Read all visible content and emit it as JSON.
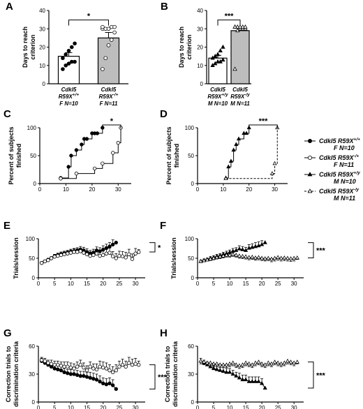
{
  "legend": [
    {
      "line1": "Cdkl5 R59X",
      "sup": "+/+",
      "line2": "F N=10",
      "marker": "filled-circle",
      "dash": false
    },
    {
      "line1": "Cdkl5 R59X",
      "sup": "-/+",
      "line2": "F N=11",
      "marker": "open-circle",
      "dash": false
    },
    {
      "line1": "Cdkl5 R59X",
      "sup": "+/y",
      "line2": "M N=10",
      "marker": "filled-triangle",
      "dash": false
    },
    {
      "line1": "Cdkl5 R59X",
      "sup": "-/y",
      "line2": "M N=11",
      "marker": "open-triangle",
      "dash": true
    }
  ],
  "chart_data": [
    {
      "id": "A",
      "type": "bar",
      "ylabel": [
        "Days to reach",
        "criterion"
      ],
      "ylim": [
        0,
        40
      ],
      "yticks": [
        0,
        10,
        20,
        30,
        40
      ],
      "categories": [
        {
          "l1": "Cdkl5",
          "l2": "R59X",
          "sup": "+/+",
          "l3": "F N=10"
        },
        {
          "l1": "Cdkl5",
          "l2": "R59X",
          "sup": "-/+",
          "l3": "F N=11"
        }
      ],
      "values": [
        15,
        25
      ],
      "sem": [
        2,
        3
      ],
      "fills": [
        "#ffffff",
        "#bdbdbd"
      ],
      "points": [
        [
          8,
          10,
          11,
          12,
          12,
          14,
          16,
          18,
          20,
          22
        ],
        [
          8,
          14,
          21,
          24,
          28,
          30,
          30,
          30,
          31,
          31,
          31
        ]
      ],
      "point_marker": [
        "filled-circle",
        "open-circle"
      ],
      "significance": "*"
    },
    {
      "id": "B",
      "type": "bar",
      "ylabel": [
        "Days to reach",
        "criterion"
      ],
      "ylim": [
        0,
        40
      ],
      "yticks": [
        0,
        10,
        20,
        30,
        40
      ],
      "categories": [
        {
          "l1": "Cdkl5",
          "l2": "R59X",
          "sup": "+/y",
          "l3": "M N=10"
        },
        {
          "l1": "Cdkl5",
          "l2": "R59X",
          "sup": "-/y",
          "l3": "M N=11"
        }
      ],
      "values": [
        14,
        29
      ],
      "sem": [
        1.5,
        2
      ],
      "fills": [
        "#ffffff",
        "#bdbdbd"
      ],
      "points": [
        [
          10,
          11,
          12,
          12,
          13,
          14,
          15,
          16,
          18,
          20
        ],
        [
          8,
          29,
          30,
          30,
          30,
          31,
          31,
          31,
          31,
          31,
          31
        ]
      ],
      "point_marker": [
        "filled-triangle",
        "open-triangle"
      ],
      "significance": "***"
    },
    {
      "id": "C",
      "type": "line",
      "ylabel": [
        "Percent of subjects",
        "finished"
      ],
      "xlim": [
        0,
        35
      ],
      "xticks": [
        0,
        10,
        20,
        30
      ],
      "ylim": [
        0,
        100
      ],
      "yticks": [
        0,
        50,
        100
      ],
      "series": [
        {
          "x": [
            8,
            11,
            12,
            14,
            16,
            17,
            18,
            20,
            21,
            22,
            24
          ],
          "y": [
            10,
            30,
            50,
            60,
            70,
            80,
            80,
            90,
            90,
            90,
            100
          ],
          "marker": "filled-circle",
          "dash": false
        },
        {
          "x": [
            8,
            14,
            21,
            24,
            28,
            30,
            31
          ],
          "y": [
            9,
            18,
            27,
            36,
            55,
            73,
            100
          ],
          "marker": "open-circle",
          "dash": false
        }
      ],
      "significance": "*"
    },
    {
      "id": "D",
      "type": "line",
      "ylabel": [
        "Percent of subjects",
        "finished"
      ],
      "xlim": [
        0,
        35
      ],
      "xticks": [
        0,
        10,
        20,
        30
      ],
      "ylim": [
        0,
        100
      ],
      "yticks": [
        0,
        50,
        100
      ],
      "series": [
        {
          "x": [
            11,
            12,
            13,
            14,
            15,
            16,
            18,
            19,
            20
          ],
          "y": [
            10,
            30,
            40,
            60,
            70,
            80,
            90,
            90,
            100
          ],
          "marker": "filled-triangle",
          "dash": false
        },
        {
          "x": [
            11,
            29,
            30,
            31
          ],
          "y": [
            9,
            18,
            36,
            100
          ],
          "marker": "open-triangle",
          "dash": true
        }
      ],
      "significance": "***"
    },
    {
      "id": "E",
      "type": "line",
      "ylabel": [
        "Trials/session"
      ],
      "xlim": [
        0,
        33
      ],
      "xticks": [
        0,
        5,
        10,
        15,
        20,
        25,
        30
      ],
      "ylim": [
        0,
        100
      ],
      "yticks": [
        0,
        50,
        100
      ],
      "series": [
        {
          "x": [
            1,
            2,
            3,
            4,
            5,
            6,
            7,
            8,
            9,
            10,
            11,
            12,
            13,
            14,
            15,
            16,
            17,
            18,
            19,
            20,
            21,
            22,
            23,
            24
          ],
          "y": [
            38,
            42,
            46,
            50,
            55,
            58,
            60,
            62,
            64,
            66,
            68,
            70,
            72,
            70,
            66,
            62,
            64,
            70,
            68,
            72,
            76,
            80,
            85,
            90
          ],
          "err": [
            3,
            3,
            4,
            4,
            5,
            5,
            6,
            6,
            6,
            7,
            7,
            7,
            8,
            8,
            8,
            8,
            9,
            9,
            9,
            10,
            10,
            10,
            12,
            0
          ],
          "marker": "filled-circle",
          "dash": false
        },
        {
          "x": [
            1,
            2,
            3,
            4,
            5,
            6,
            7,
            8,
            9,
            10,
            11,
            12,
            13,
            14,
            15,
            16,
            17,
            18,
            19,
            20,
            21,
            22,
            23,
            24,
            25,
            26,
            27,
            28,
            29,
            30,
            31
          ],
          "y": [
            38,
            42,
            45,
            50,
            54,
            56,
            58,
            60,
            62,
            64,
            66,
            66,
            68,
            64,
            60,
            56,
            58,
            62,
            56,
            58,
            62,
            64,
            55,
            50,
            56,
            55,
            52,
            60,
            48,
            62,
            66
          ],
          "err": [
            3,
            3,
            4,
            4,
            5,
            5,
            6,
            6,
            7,
            7,
            8,
            8,
            8,
            9,
            9,
            10,
            10,
            10,
            11,
            11,
            11,
            12,
            12,
            12,
            12,
            12,
            13,
            13,
            13,
            13,
            6
          ],
          "marker": "open-circle",
          "dash": false
        }
      ],
      "significance": "*"
    },
    {
      "id": "F",
      "type": "line",
      "ylabel": [
        "Trials/session"
      ],
      "xlim": [
        0,
        33
      ],
      "xticks": [
        0,
        5,
        10,
        15,
        20,
        25,
        30
      ],
      "ylim": [
        0,
        100
      ],
      "yticks": [
        0,
        50,
        100
      ],
      "series": [
        {
          "x": [
            1,
            2,
            3,
            4,
            5,
            6,
            7,
            8,
            9,
            10,
            11,
            12,
            13,
            14,
            15,
            16,
            17,
            18,
            19,
            20,
            21
          ],
          "y": [
            42,
            45,
            47,
            50,
            52,
            55,
            57,
            60,
            62,
            65,
            68,
            70,
            74,
            72,
            70,
            76,
            78,
            80,
            82,
            85,
            90
          ],
          "err": [
            3,
            3,
            3,
            4,
            4,
            5,
            5,
            5,
            6,
            6,
            7,
            7,
            8,
            8,
            8,
            9,
            9,
            10,
            10,
            10,
            0
          ],
          "marker": "filled-triangle",
          "dash": false
        },
        {
          "x": [
            1,
            2,
            3,
            4,
            5,
            6,
            7,
            8,
            9,
            10,
            11,
            12,
            13,
            14,
            15,
            16,
            17,
            18,
            19,
            20,
            21,
            22,
            23,
            24,
            25,
            26,
            27,
            28,
            29,
            30,
            31
          ],
          "y": [
            42,
            44,
            46,
            48,
            50,
            52,
            54,
            56,
            58,
            58,
            60,
            58,
            56,
            55,
            54,
            52,
            53,
            51,
            52,
            50,
            49,
            50,
            48,
            50,
            52,
            50,
            51,
            50,
            49,
            50,
            51
          ],
          "err": [
            3,
            3,
            3,
            4,
            4,
            4,
            5,
            5,
            5,
            5,
            5,
            5,
            6,
            6,
            6,
            6,
            6,
            6,
            6,
            6,
            6,
            6,
            7,
            7,
            7,
            7,
            7,
            7,
            7,
            7,
            4
          ],
          "marker": "open-triangle",
          "dash": true
        }
      ],
      "significance": "***"
    },
    {
      "id": "G",
      "type": "line",
      "ylabel": [
        "Correction trials to",
        "discrimination criteria"
      ],
      "xlim": [
        0,
        33
      ],
      "xticks": [
        0,
        5,
        10,
        15,
        20,
        25,
        30
      ],
      "ylim": [
        0,
        60
      ],
      "yticks": [
        0,
        30,
        60
      ],
      "series": [
        {
          "x": [
            1,
            2,
            3,
            4,
            5,
            6,
            7,
            8,
            9,
            10,
            11,
            12,
            13,
            14,
            15,
            16,
            17,
            18,
            19,
            20,
            21,
            22,
            23,
            24
          ],
          "y": [
            44,
            42,
            40,
            38,
            36,
            35,
            34,
            32,
            31,
            30,
            30,
            29,
            28,
            28,
            27,
            26,
            25,
            24,
            22,
            20,
            19,
            20,
            18,
            14
          ],
          "err": [
            3,
            3,
            3,
            3,
            4,
            4,
            4,
            4,
            4,
            5,
            5,
            5,
            5,
            5,
            5,
            6,
            6,
            6,
            6,
            6,
            6,
            6,
            6,
            0
          ],
          "marker": "filled-circle",
          "dash": false
        },
        {
          "x": [
            1,
            2,
            3,
            4,
            5,
            6,
            7,
            8,
            9,
            10,
            11,
            12,
            13,
            14,
            15,
            16,
            17,
            18,
            19,
            20,
            21,
            22,
            23,
            24,
            25,
            26,
            27,
            28,
            29,
            30,
            31
          ],
          "y": [
            45,
            44,
            42,
            41,
            40,
            40,
            39,
            38,
            38,
            37,
            36,
            38,
            40,
            37,
            34,
            38,
            36,
            35,
            38,
            37,
            36,
            34,
            32,
            34,
            38,
            40,
            38,
            42,
            40,
            41,
            40
          ],
          "err": [
            3,
            3,
            3,
            4,
            4,
            4,
            4,
            5,
            5,
            5,
            5,
            5,
            5,
            5,
            5,
            5,
            5,
            6,
            6,
            6,
            6,
            6,
            6,
            6,
            6,
            6,
            6,
            6,
            6,
            6,
            4
          ],
          "marker": "open-circle",
          "dash": false
        }
      ],
      "significance": "***"
    },
    {
      "id": "H",
      "type": "line",
      "ylabel": [
        "Correction trials to",
        "discrimination criteria"
      ],
      "xlim": [
        0,
        33
      ],
      "xticks": [
        0,
        5,
        10,
        15,
        20,
        25,
        30
      ],
      "ylim": [
        0,
        60
      ],
      "yticks": [
        0,
        30,
        60
      ],
      "series": [
        {
          "x": [
            1,
            2,
            3,
            4,
            5,
            6,
            7,
            8,
            9,
            10,
            11,
            12,
            13,
            14,
            15,
            16,
            17,
            18,
            19,
            20,
            21
          ],
          "y": [
            44,
            42,
            40,
            38,
            36,
            35,
            34,
            33,
            32,
            32,
            30,
            28,
            26,
            24,
            24,
            22,
            22,
            22,
            22,
            20,
            15
          ],
          "err": [
            3,
            3,
            3,
            3,
            3,
            3,
            3,
            4,
            4,
            4,
            4,
            4,
            5,
            5,
            5,
            5,
            5,
            5,
            5,
            5,
            0
          ],
          "marker": "filled-triangle",
          "dash": false
        },
        {
          "x": [
            1,
            2,
            3,
            4,
            5,
            6,
            7,
            8,
            9,
            10,
            11,
            12,
            13,
            14,
            15,
            16,
            17,
            18,
            19,
            20,
            21,
            22,
            23,
            24,
            25,
            26,
            27,
            28,
            29,
            30,
            31
          ],
          "y": [
            44,
            43,
            42,
            42,
            41,
            41,
            40,
            40,
            40,
            41,
            42,
            40,
            39,
            40,
            42,
            41,
            40,
            42,
            43,
            41,
            40,
            42,
            41,
            43,
            42,
            41,
            42,
            44,
            43,
            42,
            43
          ],
          "err": [
            3,
            3,
            3,
            3,
            3,
            3,
            3,
            3,
            3,
            3,
            3,
            3,
            3,
            3,
            3,
            3,
            3,
            3,
            3,
            3,
            3,
            3,
            3,
            3,
            3,
            3,
            3,
            3,
            3,
            3,
            2
          ],
          "marker": "open-triangle",
          "dash": true
        }
      ],
      "significance": "***"
    }
  ]
}
